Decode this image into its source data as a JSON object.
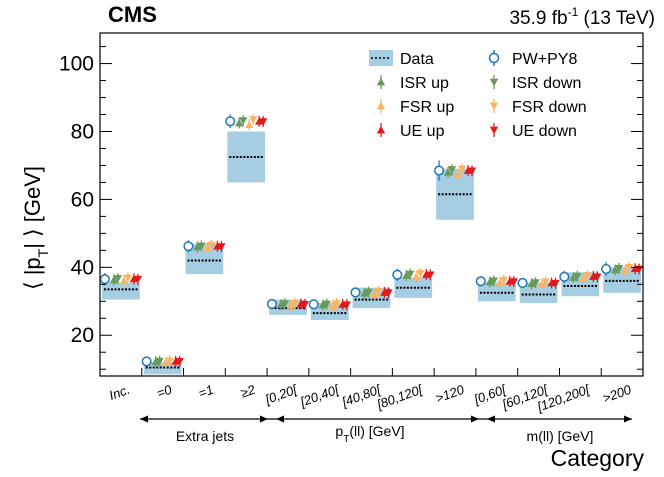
{
  "header": {
    "experiment": "CMS",
    "lumi_value": "35.9 fb",
    "lumi_exp": "-1",
    "lumi_energy": " (13 TeV)"
  },
  "axes": {
    "ylabel_pre": "⟨ |p",
    "ylabel_vec": "→",
    "ylabel_sub": "T",
    "ylabel_post": "| ⟩ [GeV]",
    "xlabel": "Category"
  },
  "groups": [
    {
      "label": "Extra jets"
    },
    {
      "label_main": "p",
      "label_sub": "T",
      "label_rest": "(ll) [GeV]"
    },
    {
      "label": "m(ll) [GeV]"
    }
  ],
  "legend": {
    "data": "Data",
    "pwpy8": "PW+PY8",
    "isr_up": "ISR up",
    "isr_down": "ISR down",
    "fsr_up": "FSR up",
    "fsr_down": "FSR down",
    "ue_up": "UE up",
    "ue_down": "UE down"
  },
  "colors": {
    "data_band": "#a6cee3",
    "pwpy8": "#1f78b4",
    "isr": "#6a9a5a",
    "fsr": "#fdb462",
    "ue": "#e31a1c"
  },
  "chart_data": {
    "type": "scatter",
    "title": "",
    "xlabel": "Category",
    "ylabel": "<|pT|> [GeV]",
    "ylim": [
      8,
      109
    ],
    "yticks": [
      20,
      40,
      60,
      80,
      100
    ],
    "categories": [
      "Inc.",
      "=0",
      "=1",
      "≥2",
      "[0,20[",
      "[20,40[",
      "[40,80[",
      "[80,120[",
      ">120",
      "[0,60[",
      "[60,120[",
      "[120,200[",
      ">200"
    ],
    "data": {
      "center": [
        33.5,
        10.5,
        42.0,
        72.5,
        28.0,
        26.5,
        30.5,
        34.0,
        61.5,
        32.5,
        32.0,
        34.5,
        36.0
      ],
      "low": [
        30.5,
        8.5,
        38.0,
        65.0,
        26.0,
        24.5,
        28.0,
        31.0,
        54.0,
        30.0,
        29.5,
        31.5,
        32.5
      ],
      "high": [
        35.5,
        12.0,
        47.0,
        80.0,
        30.5,
        29.5,
        34.0,
        37.0,
        69.0,
        35.5,
        35.5,
        38.5,
        40.0
      ]
    },
    "series": [
      {
        "name": "PW+PY8",
        "values": [
          36.5,
          12.3,
          46.2,
          83.0,
          29.2,
          29.1,
          32.6,
          37.8,
          68.5,
          35.9,
          35.4,
          37.2,
          39.5
        ]
      },
      {
        "name": "ISR up",
        "values": [
          36.3,
          12.2,
          46.0,
          82.5,
          29.0,
          28.9,
          32.4,
          37.6,
          68.0,
          35.7,
          35.2,
          37.0,
          39.2
        ]
      },
      {
        "name": "ISR down",
        "values": [
          36.7,
          12.4,
          46.3,
          83.2,
          29.3,
          29.2,
          32.7,
          38.0,
          68.8,
          36.0,
          35.5,
          37.4,
          39.7
        ]
      },
      {
        "name": "FSR up",
        "values": [
          36.0,
          12.0,
          45.8,
          82.0,
          28.8,
          28.7,
          32.1,
          37.2,
          67.5,
          35.4,
          35.0,
          36.7,
          39.0
        ]
      },
      {
        "name": "FSR down",
        "values": [
          36.9,
          12.5,
          46.5,
          83.5,
          29.4,
          29.3,
          32.9,
          38.2,
          69.0,
          36.2,
          35.7,
          37.6,
          40.0
        ]
      },
      {
        "name": "UE up",
        "values": [
          36.6,
          12.3,
          46.2,
          83.0,
          29.2,
          29.1,
          32.6,
          37.9,
          68.5,
          35.9,
          35.4,
          37.3,
          39.6
        ]
      },
      {
        "name": "UE down",
        "values": [
          36.5,
          12.3,
          46.1,
          82.9,
          29.1,
          29.0,
          32.5,
          37.8,
          68.4,
          35.8,
          35.3,
          37.2,
          39.5
        ]
      }
    ],
    "pwpy8_uncertainty": [
      1.8,
      0.8,
      1.8,
      2.0,
      1.5,
      1.5,
      1.5,
      1.8,
      3.0,
      1.5,
      1.5,
      1.8,
      2.0
    ]
  }
}
